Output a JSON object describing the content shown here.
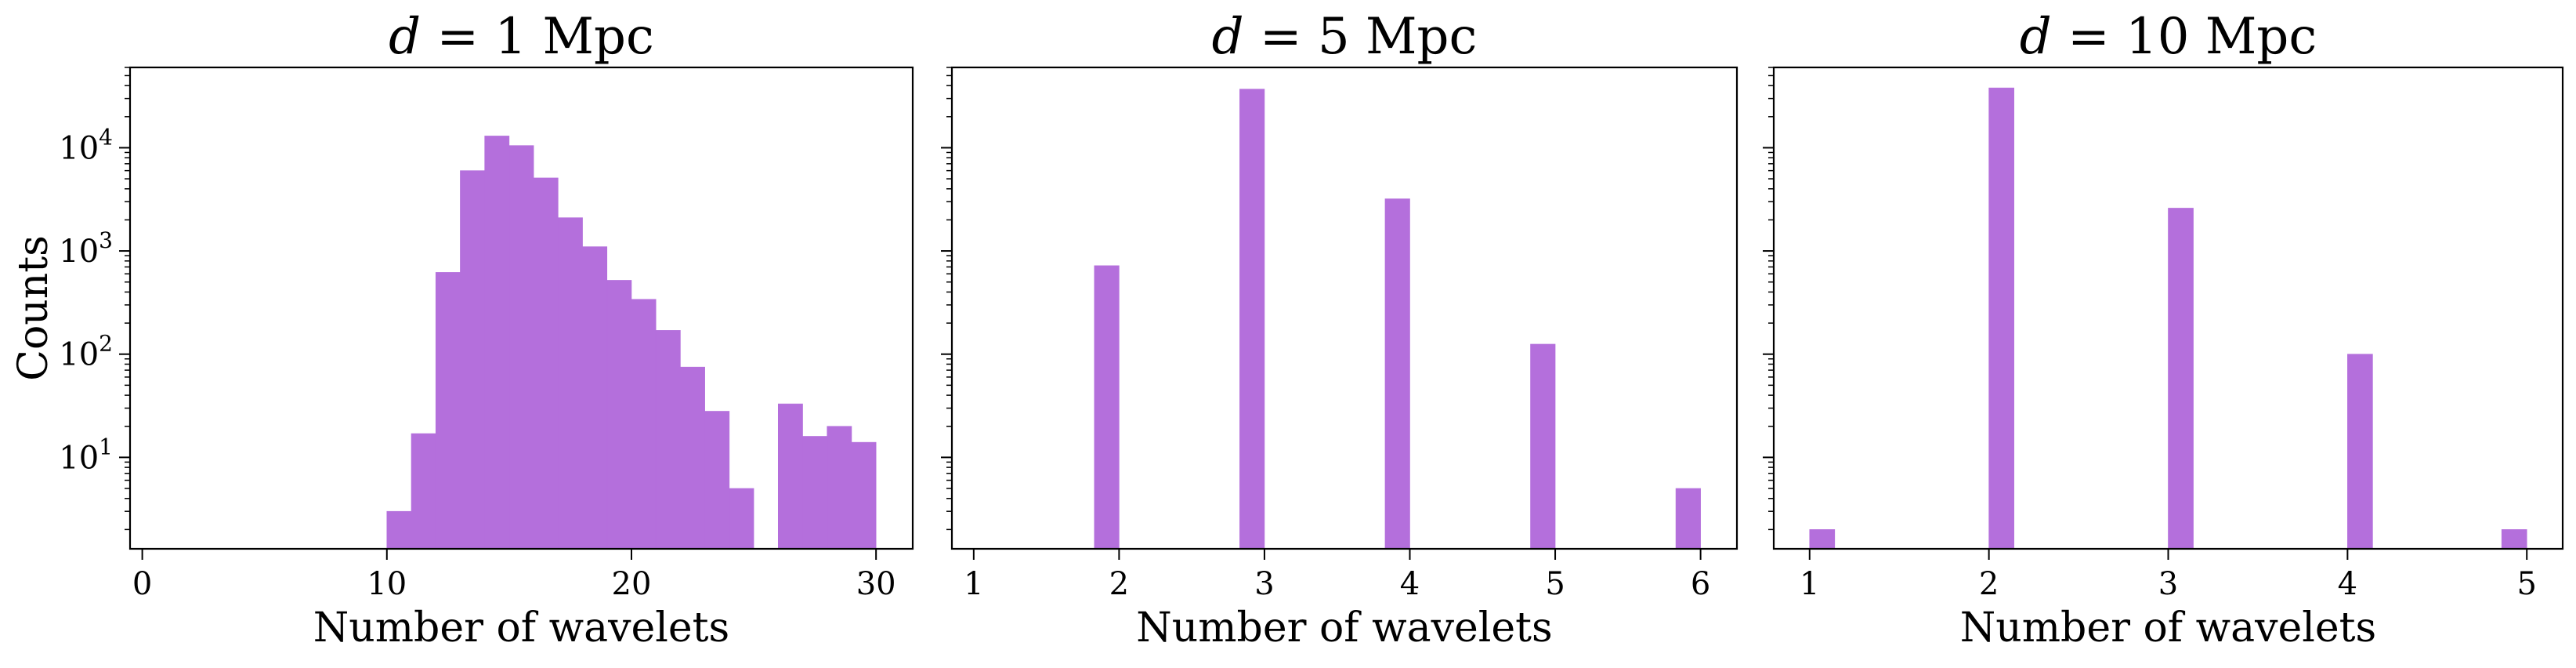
{
  "chart_data": [
    {
      "type": "bar",
      "title": "d = 1 Mpc",
      "xlabel": "Number of wavelets",
      "ylabel": "Counts",
      "yscale": "log",
      "xlim": [
        -0.5,
        31.5
      ],
      "ylim": [
        1.3,
        60000
      ],
      "xticks": [
        0,
        10,
        20,
        30
      ],
      "yticks": [
        "10^1",
        "10^2",
        "10^3",
        "10^4"
      ],
      "color": "#b46fdc",
      "bins": [
        {
          "x0": 10,
          "x1": 11,
          "count": 3
        },
        {
          "x0": 11,
          "x1": 12,
          "count": 17
        },
        {
          "x0": 12,
          "x1": 13,
          "count": 620
        },
        {
          "x0": 13,
          "x1": 14,
          "count": 6000
        },
        {
          "x0": 14,
          "x1": 15,
          "count": 13000
        },
        {
          "x0": 15,
          "x1": 16,
          "count": 10500
        },
        {
          "x0": 16,
          "x1": 17,
          "count": 5100
        },
        {
          "x0": 17,
          "x1": 18,
          "count": 2100
        },
        {
          "x0": 18,
          "x1": 19,
          "count": 1100
        },
        {
          "x0": 19,
          "x1": 20,
          "count": 520
        },
        {
          "x0": 20,
          "x1": 21,
          "count": 340
        },
        {
          "x0": 21,
          "x1": 22,
          "count": 170
        },
        {
          "x0": 22,
          "x1": 23,
          "count": 75
        },
        {
          "x0": 23,
          "x1": 24,
          "count": 28
        },
        {
          "x0": 24,
          "x1": 25,
          "count": 5
        },
        {
          "x0": 26,
          "x1": 27,
          "count": 33
        },
        {
          "x0": 27,
          "x1": 28,
          "count": 16
        },
        {
          "x0": 28,
          "x1": 29,
          "count": 20
        },
        {
          "x0": 29,
          "x1": 30,
          "count": 14
        }
      ]
    },
    {
      "type": "bar",
      "title": "d = 5 Mpc",
      "xlabel": "Number of wavelets",
      "yscale": "log",
      "xlim": [
        0.85,
        6.25
      ],
      "ylim": [
        1.3,
        60000
      ],
      "xticks": [
        1,
        2,
        3,
        4,
        5,
        6
      ],
      "color": "#b46fdc",
      "bins": [
        {
          "x0": 1.83,
          "x1": 2.0,
          "count": 720
        },
        {
          "x0": 2.83,
          "x1": 3.0,
          "count": 37000
        },
        {
          "x0": 3.83,
          "x1": 4.0,
          "count": 3200
        },
        {
          "x0": 4.83,
          "x1": 5.0,
          "count": 125
        },
        {
          "x0": 5.83,
          "x1": 6.0,
          "count": 5
        }
      ]
    },
    {
      "type": "bar",
      "title": "d = 10 Mpc",
      "xlabel": "Number of wavelets",
      "yscale": "log",
      "xlim": [
        0.8,
        5.2
      ],
      "ylim": [
        1.3,
        60000
      ],
      "xticks": [
        1,
        2,
        3,
        4,
        5
      ],
      "color": "#b46fdc",
      "bins": [
        {
          "x0": 1.0,
          "x1": 1.14,
          "count": 2
        },
        {
          "x0": 2.0,
          "x1": 2.14,
          "count": 38000
        },
        {
          "x0": 3.0,
          "x1": 3.14,
          "count": 2600
        },
        {
          "x0": 4.0,
          "x1": 4.14,
          "count": 100
        },
        {
          "x0": 4.86,
          "x1": 5.0,
          "count": 2
        }
      ]
    }
  ]
}
